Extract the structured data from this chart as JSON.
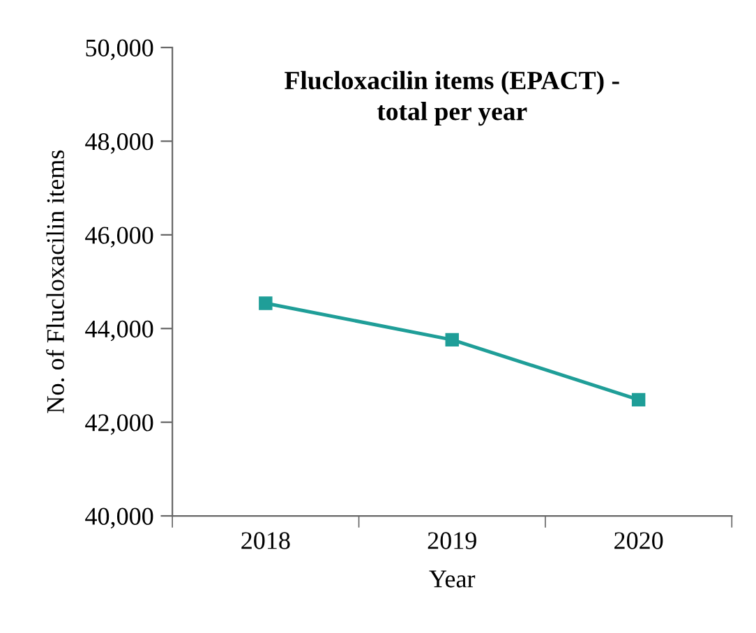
{
  "chart_data": {
    "type": "line",
    "title": "Flucloxacilin items (EPACT) -\ntotal per year",
    "xlabel": "Year",
    "ylabel": "No. of Flucloxacilin items",
    "categories": [
      "2018",
      "2019",
      "2020"
    ],
    "series": [
      {
        "color": "#1f9e98",
        "values": [
          44540,
          43760,
          42480
        ]
      }
    ],
    "ylim": [
      40000,
      50000
    ],
    "yticks": [
      {
        "value": 40000,
        "label": "40,000"
      },
      {
        "value": 42000,
        "label": "42,000"
      },
      {
        "value": 44000,
        "label": "44,000"
      },
      {
        "value": 46000,
        "label": "46,000"
      },
      {
        "value": 48000,
        "label": "48,000"
      },
      {
        "value": 50000,
        "label": "50,000"
      }
    ],
    "marker": "square",
    "line_style": "solid",
    "grid": false,
    "legend": false
  }
}
